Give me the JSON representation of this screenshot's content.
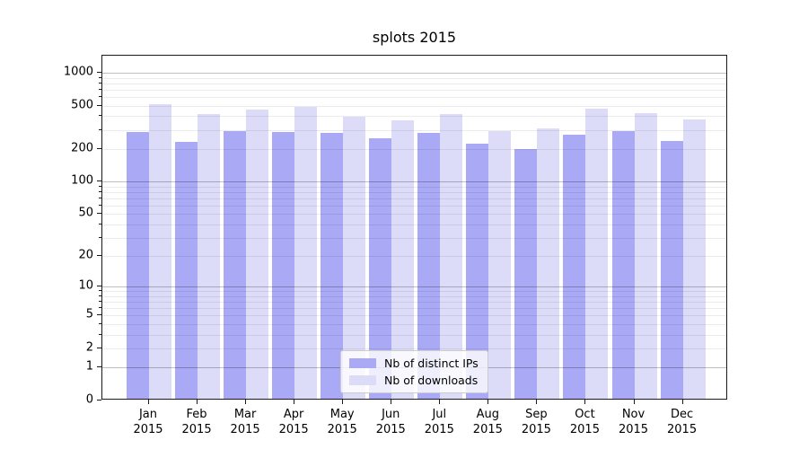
{
  "title": "splots 2015",
  "chart_data": {
    "type": "bar",
    "title": "splots 2015",
    "xlabel": "",
    "ylabel": "",
    "yscale": "log10(1+y)",
    "ylim": [
      0,
      1435
    ],
    "grid": "on",
    "legend_position": "lower center",
    "categories": [
      "Jan",
      "Feb",
      "Mar",
      "Apr",
      "May",
      "Jun",
      "Jul",
      "Aug",
      "Sep",
      "Oct",
      "Nov",
      "Dec"
    ],
    "x_year_line": "2015",
    "series": [
      {
        "name": "Nb of distinct IPs",
        "color": "#a9a9f5",
        "values": [
          285,
          230,
          292,
          285,
          280,
          250,
          278,
          220,
          198,
          267,
          287,
          235
        ]
      },
      {
        "name": "Nb of downloads",
        "color": "#dcdcf8",
        "values": [
          515,
          415,
          455,
          487,
          392,
          362,
          417,
          287,
          306,
          462,
          426,
          371
        ]
      }
    ],
    "y_tick_values": [
      1000,
      500,
      200,
      100,
      50,
      20,
      10,
      5,
      2,
      1,
      0
    ],
    "grid_major_values": [
      1,
      10,
      100,
      1000
    ],
    "grid_minor_values": [
      2,
      3,
      4,
      5,
      6,
      7,
      8,
      9,
      20,
      30,
      40,
      50,
      60,
      70,
      80,
      90,
      200,
      300,
      400,
      500,
      600,
      700,
      800,
      900
    ],
    "grid_major_color": "rgba(0,0,0,0.25)",
    "grid_minor_color": "rgba(0,0,0,0.08)"
  }
}
